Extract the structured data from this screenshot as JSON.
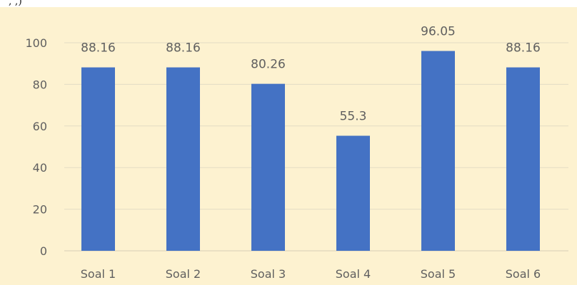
{
  "header_fragment": ",  ,)",
  "chart_data": {
    "type": "bar",
    "categories": [
      "Soal 1",
      "Soal 2",
      "Soal 3",
      "Soal 4",
      "Soal 5",
      "Soal 6"
    ],
    "values": [
      88.16,
      88.16,
      80.26,
      55.3,
      96.05,
      88.16
    ],
    "value_labels": [
      "88.16",
      "88.16",
      "80.26",
      "55.3",
      "96.05",
      "88.16"
    ],
    "y_ticks": [
      "0",
      "20",
      "40",
      "60",
      "80",
      "100"
    ],
    "ylim": [
      0,
      100
    ],
    "title": "",
    "xlabel": "",
    "ylabel": "",
    "grid": true,
    "colors": {
      "bar": "#4472c4",
      "background": "#fdf2d0",
      "grid": "#e3dcc4",
      "text": "#5f5f5f"
    }
  }
}
